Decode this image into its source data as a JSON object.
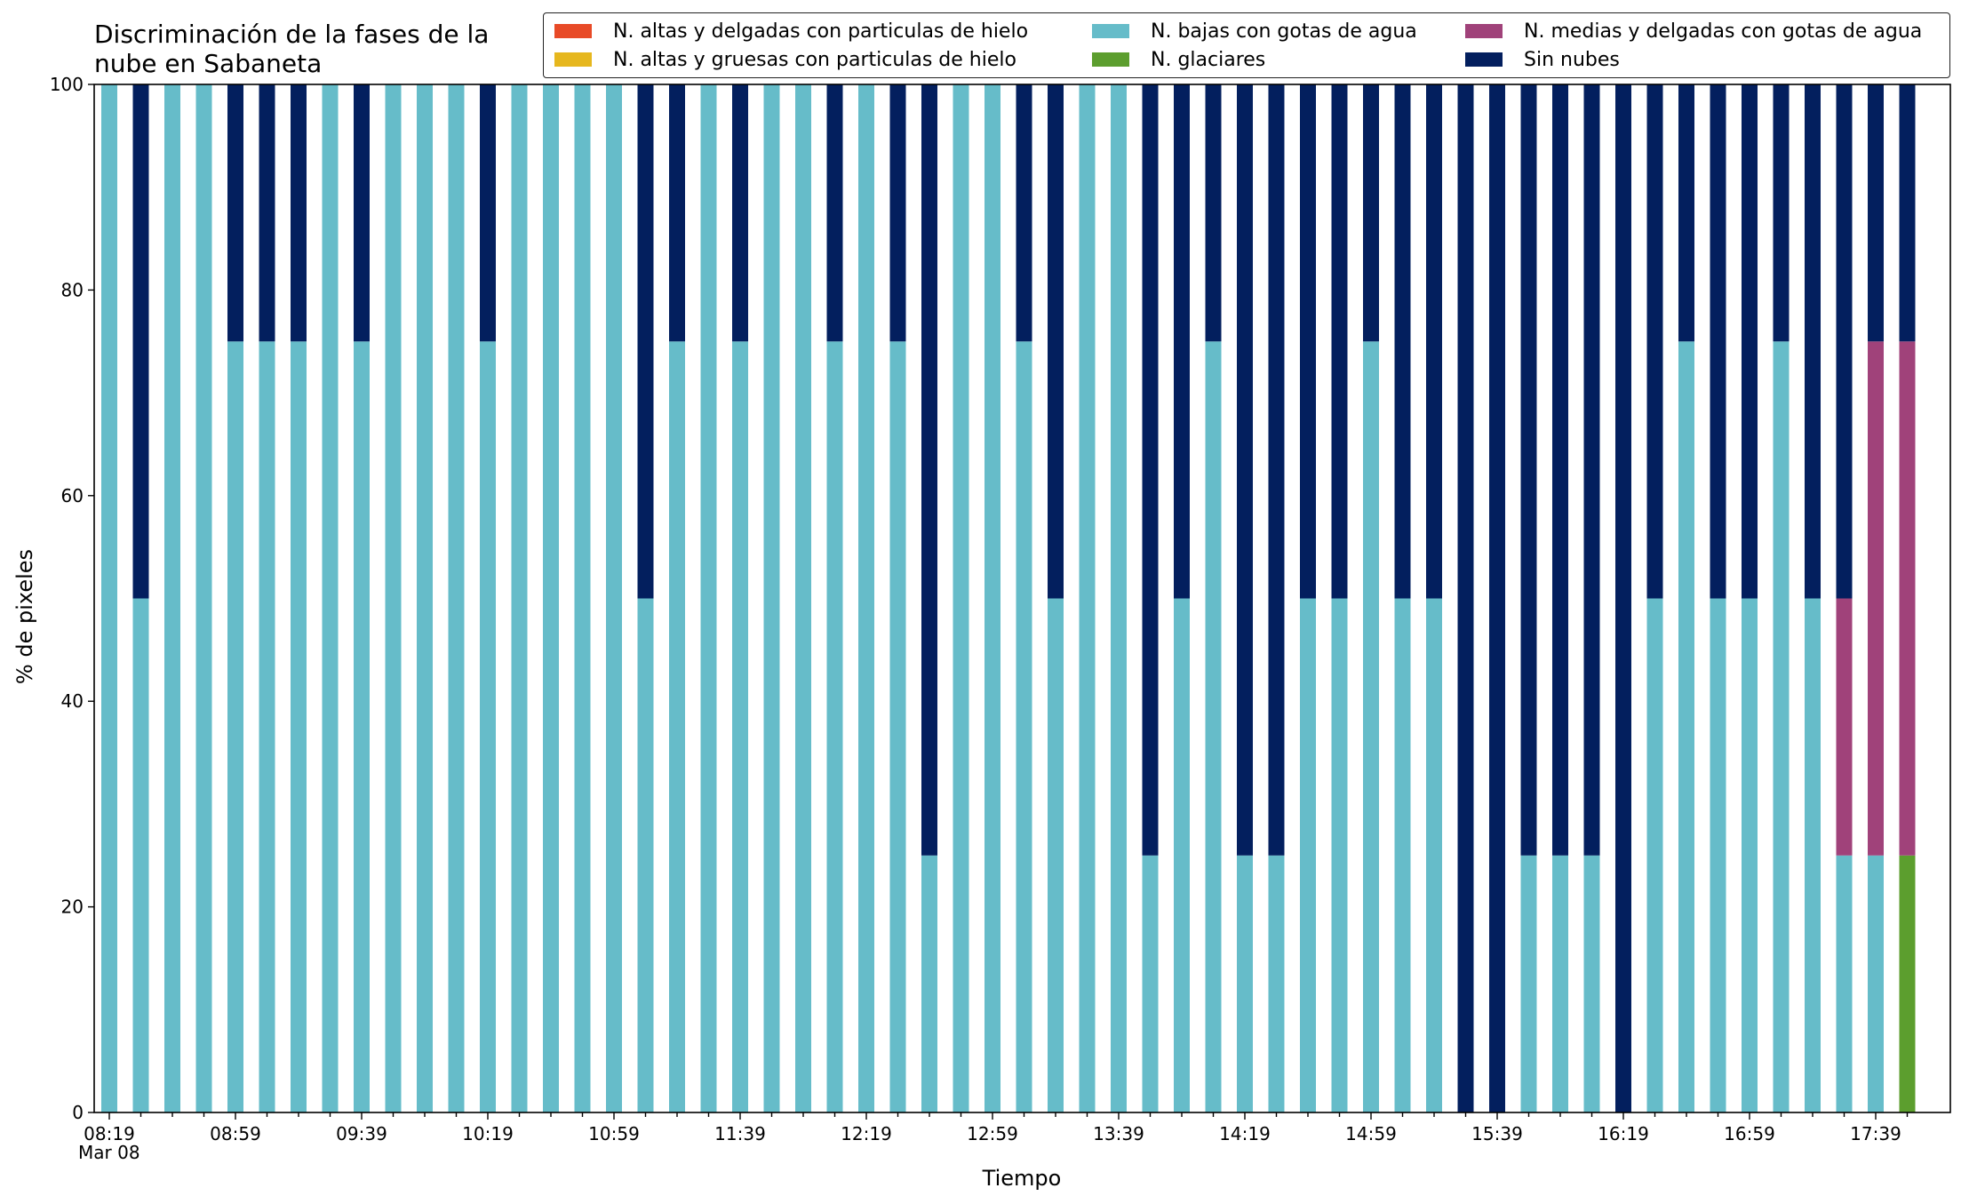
{
  "chart_data": {
    "type": "bar",
    "stacked": true,
    "title": "Discriminación de la fases de la\nnube en Sabaneta",
    "xlabel": "Tiempo",
    "ylabel": "% de pixeles",
    "ylim": [
      0,
      100
    ],
    "yticks": [
      0,
      20,
      40,
      60,
      80,
      100
    ],
    "grid": false,
    "legend_position": "top",
    "date_label": "Mar 08",
    "x_tick_labels": [
      "08:19",
      "08:59",
      "09:39",
      "10:19",
      "10:59",
      "11:39",
      "12:19",
      "12:59",
      "13:39",
      "14:19",
      "14:59",
      "15:39",
      "16:19",
      "16:59",
      "17:39"
    ],
    "categories": [
      "08:19",
      "08:29",
      "08:39",
      "08:49",
      "08:59",
      "09:09",
      "09:19",
      "09:29",
      "09:39",
      "09:49",
      "09:59",
      "10:09",
      "10:19",
      "10:29",
      "10:39",
      "10:49",
      "10:59",
      "11:09",
      "11:19",
      "11:29",
      "11:39",
      "11:49",
      "11:59",
      "12:09",
      "12:19",
      "12:29",
      "12:39",
      "12:49",
      "12:59",
      "13:09",
      "13:19",
      "13:29",
      "13:39",
      "13:49",
      "13:59",
      "14:09",
      "14:19",
      "14:29",
      "14:39",
      "14:49",
      "14:59",
      "15:09",
      "15:19",
      "15:29",
      "15:39",
      "15:49",
      "15:59",
      "16:09",
      "16:19",
      "16:29",
      "16:39",
      "16:49",
      "16:59",
      "17:09",
      "17:19",
      "17:29",
      "17:39",
      "17:49"
    ],
    "series": [
      {
        "name": "N. altas y delgadas con particulas de hielo",
        "color": "#e84a27",
        "values": [
          0,
          0,
          0,
          0,
          0,
          0,
          0,
          0,
          0,
          0,
          0,
          0,
          0,
          0,
          0,
          0,
          0,
          0,
          0,
          0,
          0,
          0,
          0,
          0,
          0,
          0,
          0,
          0,
          0,
          0,
          0,
          0,
          0,
          0,
          0,
          0,
          0,
          0,
          0,
          0,
          0,
          0,
          0,
          0,
          0,
          0,
          0,
          0,
          0,
          0,
          0,
          0,
          0,
          0,
          0,
          0,
          0,
          0
        ]
      },
      {
        "name": "N. altas y gruesas con particulas de hielo",
        "color": "#e6b71e",
        "values": [
          0,
          0,
          0,
          0,
          0,
          0,
          0,
          0,
          0,
          0,
          0,
          0,
          0,
          0,
          0,
          0,
          0,
          0,
          0,
          0,
          0,
          0,
          0,
          0,
          0,
          0,
          0,
          0,
          0,
          0,
          0,
          0,
          0,
          0,
          0,
          0,
          0,
          0,
          0,
          0,
          0,
          0,
          0,
          0,
          0,
          0,
          0,
          0,
          0,
          0,
          0,
          0,
          0,
          0,
          0,
          0,
          0,
          0
        ]
      },
      {
        "name": "N. glaciares",
        "color": "#5c9e2e",
        "values": [
          0,
          0,
          0,
          0,
          0,
          0,
          0,
          0,
          0,
          0,
          0,
          0,
          0,
          0,
          0,
          0,
          0,
          0,
          0,
          0,
          0,
          0,
          0,
          0,
          0,
          0,
          0,
          0,
          0,
          0,
          0,
          0,
          0,
          0,
          0,
          0,
          0,
          0,
          0,
          0,
          0,
          0,
          0,
          0,
          0,
          0,
          0,
          0,
          0,
          0,
          0,
          0,
          0,
          0,
          0,
          0,
          0,
          25
        ]
      },
      {
        "name": "N. bajas con gotas de agua",
        "color": "#66bcc9",
        "values": [
          100,
          50,
          100,
          100,
          75,
          75,
          75,
          100,
          75,
          100,
          100,
          100,
          75,
          100,
          100,
          100,
          100,
          50,
          75,
          100,
          75,
          100,
          100,
          75,
          100,
          75,
          25,
          100,
          100,
          75,
          50,
          100,
          100,
          25,
          50,
          75,
          25,
          25,
          50,
          50,
          75,
          50,
          50,
          0,
          0,
          25,
          25,
          25,
          0,
          50,
          75,
          50,
          50,
          75,
          50,
          25,
          25,
          0
        ]
      },
      {
        "name": "N. medias y delgadas con gotas de agua",
        "color": "#a0427a",
        "values": [
          0,
          0,
          0,
          0,
          0,
          0,
          0,
          0,
          0,
          0,
          0,
          0,
          0,
          0,
          0,
          0,
          0,
          0,
          0,
          0,
          0,
          0,
          0,
          0,
          0,
          0,
          0,
          0,
          0,
          0,
          0,
          0,
          0,
          0,
          0,
          0,
          0,
          0,
          0,
          0,
          0,
          0,
          0,
          0,
          0,
          0,
          0,
          0,
          0,
          0,
          0,
          0,
          0,
          0,
          0,
          25,
          50,
          50
        ]
      },
      {
        "name": "Sin nubes",
        "color": "#031f5e",
        "values": [
          0,
          50,
          0,
          0,
          25,
          25,
          25,
          0,
          25,
          0,
          0,
          0,
          25,
          0,
          0,
          0,
          0,
          50,
          25,
          0,
          25,
          0,
          0,
          25,
          0,
          25,
          75,
          0,
          0,
          25,
          50,
          0,
          0,
          75,
          50,
          25,
          75,
          75,
          50,
          50,
          25,
          50,
          50,
          100,
          100,
          75,
          75,
          75,
          100,
          50,
          25,
          50,
          50,
          25,
          50,
          50,
          25,
          25
        ]
      }
    ]
  },
  "legend": [
    {
      "label": "N. altas y delgadas con particulas de hielo",
      "color": "#e84a27"
    },
    {
      "label": "N. altas y gruesas con particulas de hielo",
      "color": "#e6b71e"
    },
    {
      "label": "N. bajas con gotas de agua",
      "color": "#66bcc9"
    },
    {
      "label": "N. glaciares",
      "color": "#5c9e2e"
    },
    {
      "label": "N. medias y delgadas con gotas de agua",
      "color": "#a0427a"
    },
    {
      "label": "Sin nubes",
      "color": "#031f5e"
    }
  ]
}
